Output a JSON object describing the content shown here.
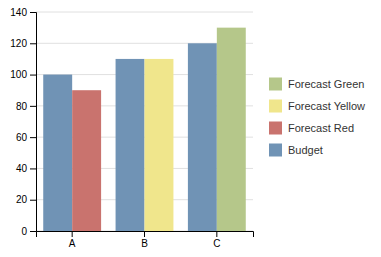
{
  "chart_data": {
    "type": "bar",
    "categories": [
      "A",
      "B",
      "C"
    ],
    "series": [
      {
        "color": "#7093b5",
        "values": [
          100,
          110,
          120
        ]
      },
      {
        "colors": [
          "#c9736e",
          "#f0e68c",
          "#b5c78a"
        ],
        "values": [
          90,
          110,
          130
        ]
      }
    ],
    "legend_entries": [
      {
        "label": "Forecast Green",
        "color": "#b5c78a"
      },
      {
        "label": "Forecast Yellow",
        "color": "#f0e68c"
      },
      {
        "label": "Forecast Red",
        "color": "#c9736e"
      },
      {
        "label": "Budget",
        "color": "#7093b5"
      }
    ],
    "legend": "right",
    "ylim": [
      0,
      140
    ],
    "yticks": [
      0,
      20,
      40,
      60,
      80,
      100,
      120,
      140
    ],
    "grid": true
  }
}
